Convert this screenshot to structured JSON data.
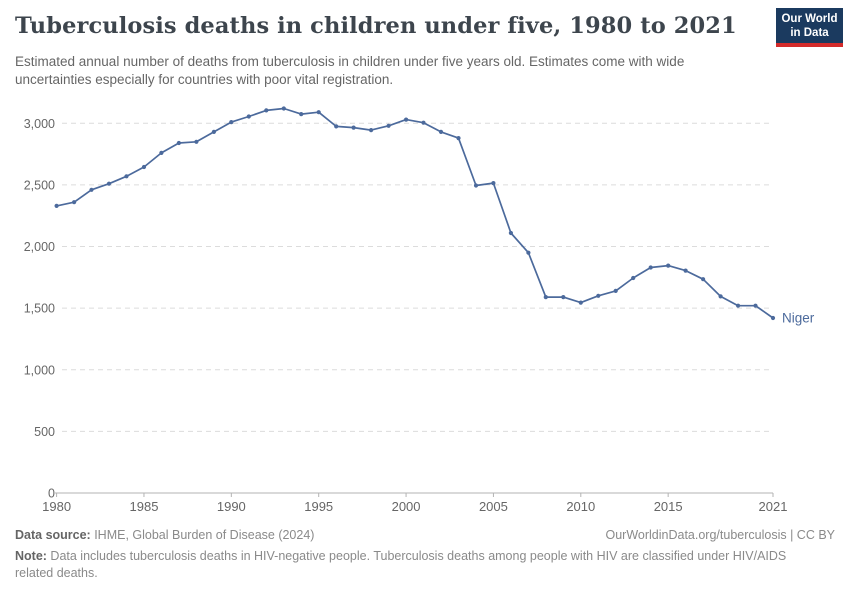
{
  "header": {
    "title": "Tuberculosis deaths in children under five, 1980 to 2021",
    "subtitle": "Estimated annual number of deaths from tuberculosis in children under five years old. Estimates come with wide uncertainties especially for countries with poor vital registration.",
    "logo": {
      "line1": "Our World",
      "line2": "in Data"
    }
  },
  "chart_data": {
    "type": "line",
    "title": "Tuberculosis deaths in children under five, 1980 to 2021",
    "xlabel": "",
    "ylabel": "",
    "xlim": [
      1980,
      2021
    ],
    "ylim": [
      0,
      3200
    ],
    "x_ticks": [
      1980,
      1985,
      1990,
      1995,
      2000,
      2005,
      2010,
      2015,
      2021
    ],
    "y_ticks": [
      0,
      500,
      1000,
      1500,
      2000,
      2500,
      3000
    ],
    "grid": "horizontal-dashed",
    "legend_position": "end-of-line-label",
    "x": [
      1980,
      1981,
      1982,
      1983,
      1984,
      1985,
      1986,
      1987,
      1988,
      1989,
      1990,
      1991,
      1992,
      1993,
      1994,
      1995,
      1996,
      1997,
      1998,
      1999,
      2000,
      2001,
      2002,
      2003,
      2004,
      2005,
      2006,
      2007,
      2008,
      2009,
      2010,
      2011,
      2012,
      2013,
      2014,
      2015,
      2016,
      2017,
      2018,
      2019,
      2020,
      2021
    ],
    "series": [
      {
        "name": "Niger",
        "color": "#4c6a9c",
        "values": [
          2330,
          2360,
          2460,
          2510,
          2570,
          2645,
          2760,
          2840,
          2850,
          2930,
          3010,
          3055,
          3105,
          3120,
          3075,
          3090,
          2975,
          2965,
          2945,
          2980,
          3030,
          3005,
          2930,
          2880,
          2495,
          2515,
          2110,
          1950,
          1590,
          1590,
          1545,
          1600,
          1640,
          1745,
          1830,
          1845,
          1805,
          1735,
          1595,
          1520,
          1520,
          1420
        ]
      }
    ]
  },
  "footer": {
    "source_label": "Data source:",
    "source_value": " IHME, Global Burden of Disease (2024)",
    "link": "OurWorldinData.org/tuberculosis | CC BY",
    "note_label": "Note:",
    "note_value": " Data includes tuberculosis deaths in HIV-negative people. Tuberculosis deaths among people with HIV are classified under HIV/AIDS related deaths."
  },
  "colors": {
    "title": "#3d454d",
    "subtitle": "#666666",
    "line": "#4c6a9c",
    "grid": "#dcdcdc",
    "axis": "#b3b3b3",
    "tick_label": "#666666",
    "logo_bg": "#1b3a5f",
    "logo_stripe": "#d42b2b",
    "footer_text": "#8a8a8a"
  }
}
